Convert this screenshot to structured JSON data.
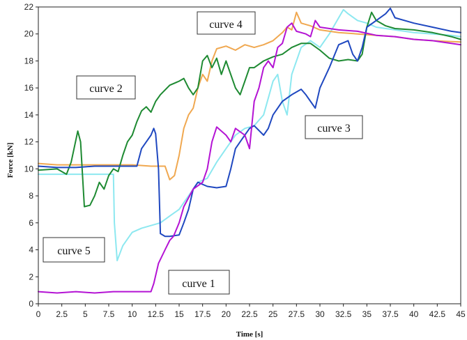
{
  "chart_data": {
    "type": "line",
    "xlabel": "Time [s]",
    "ylabel": "Force [kN]",
    "xlim": [
      0,
      45
    ],
    "ylim": [
      0,
      22
    ],
    "xticks": [
      "0",
      "2.5",
      "5",
      "7.5",
      "10",
      "12.5",
      "15",
      "17.5",
      "20",
      "22.5",
      "25",
      "27.5",
      "30",
      "32.5",
      "35",
      "37.5",
      "40",
      "42.5",
      "45"
    ],
    "yticks": [
      "0",
      "2",
      "4",
      "6",
      "8",
      "10",
      "12",
      "14",
      "16",
      "18",
      "20",
      "22"
    ],
    "grid": false,
    "annotations": [
      {
        "text": "curve 4",
        "series": "curve 4"
      },
      {
        "text": "curve 2",
        "series": "curve 2"
      },
      {
        "text": "curve 3",
        "series": "curve 3"
      },
      {
        "text": "curve 5",
        "series": "curve 5"
      },
      {
        "text": "curve 1",
        "series": "curve 1"
      }
    ],
    "series": [
      {
        "name": "curve 1",
        "color": "#b413d4",
        "points": [
          [
            0,
            0.9
          ],
          [
            2,
            0.8
          ],
          [
            4,
            0.9
          ],
          [
            6,
            0.8
          ],
          [
            8,
            0.9
          ],
          [
            10,
            0.9
          ],
          [
            12,
            0.9
          ],
          [
            12.3,
            1.5
          ],
          [
            12.8,
            3
          ],
          [
            13.5,
            4
          ],
          [
            14,
            4.7
          ],
          [
            14.4,
            5
          ],
          [
            15,
            6
          ],
          [
            15.5,
            7.2
          ],
          [
            16.5,
            8.5
          ],
          [
            17.5,
            9
          ],
          [
            18,
            10
          ],
          [
            18.5,
            12
          ],
          [
            19,
            13.1
          ],
          [
            19.5,
            12.8
          ],
          [
            20,
            12.5
          ],
          [
            20.5,
            12
          ],
          [
            21,
            13
          ],
          [
            22,
            12.5
          ],
          [
            22.5,
            11.5
          ],
          [
            23,
            15
          ],
          [
            23.5,
            16
          ],
          [
            24,
            17.5
          ],
          [
            24.5,
            18
          ],
          [
            25,
            17.5
          ],
          [
            25.5,
            19
          ],
          [
            26,
            19.3
          ],
          [
            26.5,
            20.5
          ],
          [
            27,
            20.8
          ],
          [
            27.5,
            20.2
          ],
          [
            28.5,
            20
          ],
          [
            29,
            19.8
          ],
          [
            29.5,
            21
          ],
          [
            30,
            20.5
          ],
          [
            32,
            20.3
          ],
          [
            34,
            20.2
          ],
          [
            36,
            19.9
          ],
          [
            38,
            19.8
          ],
          [
            40,
            19.6
          ],
          [
            42,
            19.5
          ],
          [
            44,
            19.3
          ],
          [
            45,
            19.2
          ]
        ]
      },
      {
        "name": "curve 2",
        "color": "#1e8a32",
        "points": [
          [
            0,
            9.9
          ],
          [
            2,
            10
          ],
          [
            3,
            9.6
          ],
          [
            3.5,
            10.5
          ],
          [
            4.2,
            12.8
          ],
          [
            4.5,
            12
          ],
          [
            4.9,
            7.2
          ],
          [
            5.5,
            7.3
          ],
          [
            6,
            8
          ],
          [
            6.5,
            9
          ],
          [
            7,
            8.5
          ],
          [
            7.5,
            9.5
          ],
          [
            8,
            10
          ],
          [
            8.5,
            9.8
          ],
          [
            9,
            11
          ],
          [
            9.5,
            12
          ],
          [
            10,
            12.5
          ],
          [
            10.5,
            13.5
          ],
          [
            11,
            14.3
          ],
          [
            11.5,
            14.6
          ],
          [
            12,
            14.2
          ],
          [
            12.5,
            15
          ],
          [
            13,
            15.5
          ],
          [
            14,
            16.2
          ],
          [
            15,
            16.5
          ],
          [
            15.5,
            16.7
          ],
          [
            16,
            16
          ],
          [
            16.5,
            15.5
          ],
          [
            17,
            16
          ],
          [
            17.5,
            18
          ],
          [
            18,
            18.4
          ],
          [
            18.5,
            17.5
          ],
          [
            19,
            18.2
          ],
          [
            19.5,
            17
          ],
          [
            20,
            18
          ],
          [
            21,
            16
          ],
          [
            21.5,
            15.5
          ],
          [
            22,
            16.5
          ],
          [
            22.5,
            17.5
          ],
          [
            23,
            17.5
          ],
          [
            24,
            18
          ],
          [
            25,
            18.3
          ],
          [
            26,
            18.5
          ],
          [
            27,
            19
          ],
          [
            28,
            19.3
          ],
          [
            29,
            19.3
          ],
          [
            30,
            18.8
          ],
          [
            31,
            18.2
          ],
          [
            32,
            18
          ],
          [
            33,
            18.1
          ],
          [
            34,
            18
          ],
          [
            34.5,
            18.5
          ],
          [
            35,
            20.5
          ],
          [
            35.5,
            21.6
          ],
          [
            36,
            21
          ],
          [
            37,
            20.6
          ],
          [
            38,
            20.4
          ],
          [
            40,
            20.3
          ],
          [
            42,
            20.1
          ],
          [
            44,
            19.8
          ],
          [
            45,
            19.6
          ]
        ]
      },
      {
        "name": "curve 3",
        "color": "#1f48c0",
        "points": [
          [
            0,
            10.2
          ],
          [
            2,
            10.1
          ],
          [
            4,
            10.1
          ],
          [
            6,
            10.2
          ],
          [
            8,
            10.2
          ],
          [
            10,
            10.2
          ],
          [
            10.5,
            10.2
          ],
          [
            11,
            11.5
          ],
          [
            11.5,
            12
          ],
          [
            12,
            12.5
          ],
          [
            12.3,
            13
          ],
          [
            12.5,
            12.6
          ],
          [
            12.8,
            10
          ],
          [
            13,
            5.2
          ],
          [
            13.5,
            5
          ],
          [
            14,
            5
          ],
          [
            15,
            5.1
          ],
          [
            15.5,
            6
          ],
          [
            16,
            7
          ],
          [
            16.5,
            8.5
          ],
          [
            17,
            9
          ],
          [
            18,
            8.7
          ],
          [
            19,
            8.6
          ],
          [
            20,
            8.7
          ],
          [
            20.5,
            10
          ],
          [
            21,
            11.5
          ],
          [
            21.5,
            12
          ],
          [
            22.5,
            13
          ],
          [
            23,
            13.2
          ],
          [
            24,
            12.5
          ],
          [
            24.5,
            13
          ],
          [
            25,
            14
          ],
          [
            26,
            15
          ],
          [
            27,
            15.5
          ],
          [
            28,
            15.9
          ],
          [
            28.5,
            15.5
          ],
          [
            29,
            15
          ],
          [
            29.5,
            14.5
          ],
          [
            30,
            16
          ],
          [
            31,
            17.5
          ],
          [
            32,
            19.2
          ],
          [
            33,
            19.5
          ],
          [
            33.5,
            18.5
          ],
          [
            34,
            18
          ],
          [
            34.5,
            19
          ],
          [
            35,
            20.5
          ],
          [
            36,
            21
          ],
          [
            37,
            21.5
          ],
          [
            37.5,
            21.9
          ],
          [
            38,
            21.2
          ],
          [
            40,
            20.8
          ],
          [
            42,
            20.5
          ],
          [
            44,
            20.2
          ],
          [
            45,
            20.1
          ]
        ]
      },
      {
        "name": "curve 4",
        "color": "#f0a850",
        "points": [
          [
            0,
            10.4
          ],
          [
            2,
            10.3
          ],
          [
            4,
            10.3
          ],
          [
            6,
            10.3
          ],
          [
            8,
            10.3
          ],
          [
            10,
            10.3
          ],
          [
            12,
            10.2
          ],
          [
            13.5,
            10.2
          ],
          [
            14,
            9.2
          ],
          [
            14.5,
            9.5
          ],
          [
            15,
            11
          ],
          [
            15.5,
            13
          ],
          [
            16,
            14
          ],
          [
            16.5,
            14.5
          ],
          [
            17,
            16
          ],
          [
            17.5,
            17
          ],
          [
            18,
            16.5
          ],
          [
            18.5,
            18
          ],
          [
            19,
            18.9
          ],
          [
            20,
            19.1
          ],
          [
            21,
            18.8
          ],
          [
            22,
            19.2
          ],
          [
            23,
            19
          ],
          [
            24,
            19.2
          ],
          [
            25,
            19.5
          ],
          [
            26,
            20.1
          ],
          [
            26.5,
            20.5
          ],
          [
            27,
            20.3
          ],
          [
            27.5,
            21.6
          ],
          [
            28,
            20.8
          ],
          [
            29,
            20.6
          ],
          [
            30,
            20.3
          ],
          [
            32,
            20.1
          ],
          [
            34,
            20
          ],
          [
            36,
            19.9
          ],
          [
            38,
            19.8
          ],
          [
            40,
            19.6
          ],
          [
            42,
            19.5
          ],
          [
            45,
            19.4
          ]
        ]
      },
      {
        "name": "curve 5",
        "color": "#8de8f0",
        "points": [
          [
            0,
            9.6
          ],
          [
            2,
            9.6
          ],
          [
            4,
            9.6
          ],
          [
            6,
            9.6
          ],
          [
            8,
            9.6
          ],
          [
            8.1,
            6
          ],
          [
            8.4,
            3.2
          ],
          [
            9,
            4.3
          ],
          [
            9.5,
            4.8
          ],
          [
            10,
            5.3
          ],
          [
            11,
            5.6
          ],
          [
            12,
            5.8
          ],
          [
            13,
            6
          ],
          [
            14,
            6.5
          ],
          [
            15,
            7
          ],
          [
            16,
            8
          ],
          [
            17,
            9
          ],
          [
            18,
            9.3
          ],
          [
            19,
            10.5
          ],
          [
            20,
            11.5
          ],
          [
            21,
            12.5
          ],
          [
            22,
            13
          ],
          [
            23,
            13.2
          ],
          [
            24,
            14
          ],
          [
            25,
            16.5
          ],
          [
            25.5,
            17
          ],
          [
            26,
            15
          ],
          [
            26.5,
            14
          ],
          [
            27,
            17
          ],
          [
            28,
            19
          ],
          [
            29,
            19.5
          ],
          [
            30,
            19
          ],
          [
            31,
            20
          ],
          [
            32,
            21.2
          ],
          [
            32.5,
            21.8
          ],
          [
            33,
            21.5
          ],
          [
            34,
            21
          ],
          [
            35,
            20.8
          ],
          [
            36,
            20.5
          ],
          [
            38,
            20.3
          ],
          [
            40,
            20.1
          ],
          [
            42,
            20
          ],
          [
            44,
            19.9
          ],
          [
            45,
            19.8
          ]
        ]
      }
    ]
  }
}
